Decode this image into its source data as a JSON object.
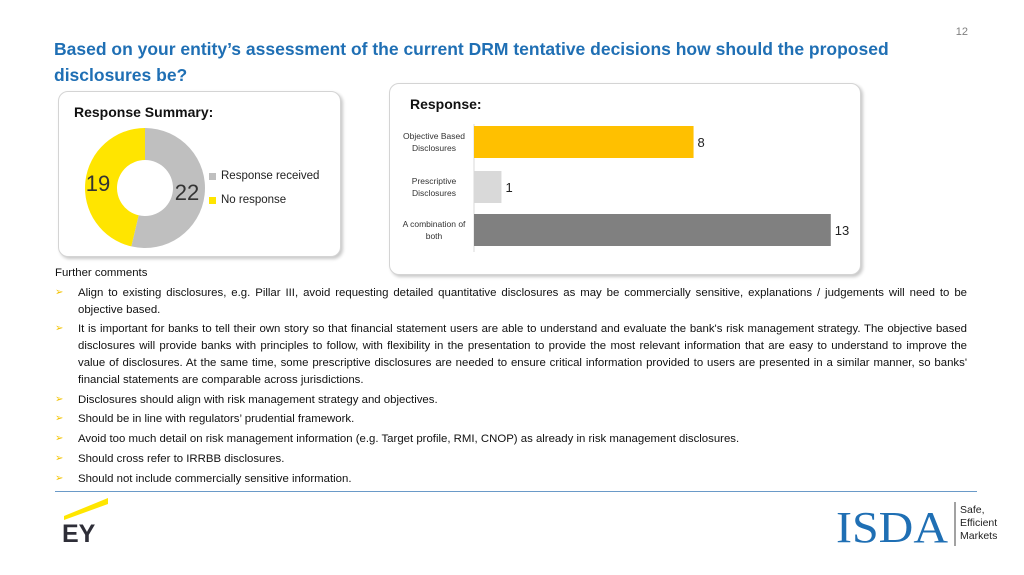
{
  "page_number": "12",
  "title": "Based on your entity’s assessment of the current DRM tentative decisions how should the proposed disclosures be?",
  "summary_panel": {
    "title": "Response Summary:",
    "chart_data": {
      "type": "pie",
      "categories": [
        "Response received",
        "No response"
      ],
      "values": [
        22,
        19
      ],
      "colors": [
        "#bfbfbf",
        "#ffe500"
      ]
    }
  },
  "response_panel": {
    "title": "Response:",
    "chart_data": {
      "type": "bar",
      "orientation": "horizontal",
      "categories": [
        [
          "Objective Based",
          "Disclosures"
        ],
        [
          "Prescriptive",
          "Disclosures"
        ],
        [
          "A combination of",
          "both"
        ]
      ],
      "values": [
        8,
        1,
        13
      ],
      "colors": [
        "#ffc000",
        "#d9d9d9",
        "#808080"
      ]
    }
  },
  "comments": {
    "heading": "Further comments",
    "items": [
      "Align to existing disclosures, e.g. Pillar III, avoid requesting detailed quantitative disclosures as may be commercially sensitive, explanations / judgements will need to be objective based.",
      "It is important for banks to tell their own story so that financial statement users are able to understand and evaluate the bank's risk management strategy. The objective based disclosures will provide banks with principles to follow, with flexibility in the presentation to provide the most relevant information that are easy to understand to improve the value of disclosures.  At the same time, some prescriptive disclosures are needed to ensure critical information provided to users are presented in a similar manner, so banks' financial statements are comparable across jurisdictions.",
      "Disclosures should align with risk management strategy and objectives.",
      "Should be in line with regulators’ prudential framework.",
      "Avoid too much detail on risk management information (e.g. Target profile, RMI, CNOP) as already in risk management disclosures.",
      "Should cross refer to IRRBB disclosures.",
      "Should not include commercially sensitive information."
    ]
  },
  "footer": {
    "ey_logo_text": "EY",
    "isda_logo_text": "ISDA",
    "isda_tagline": [
      "Safe,",
      "Efficient",
      "Markets"
    ],
    "accent_color": "#1f6fb4"
  }
}
